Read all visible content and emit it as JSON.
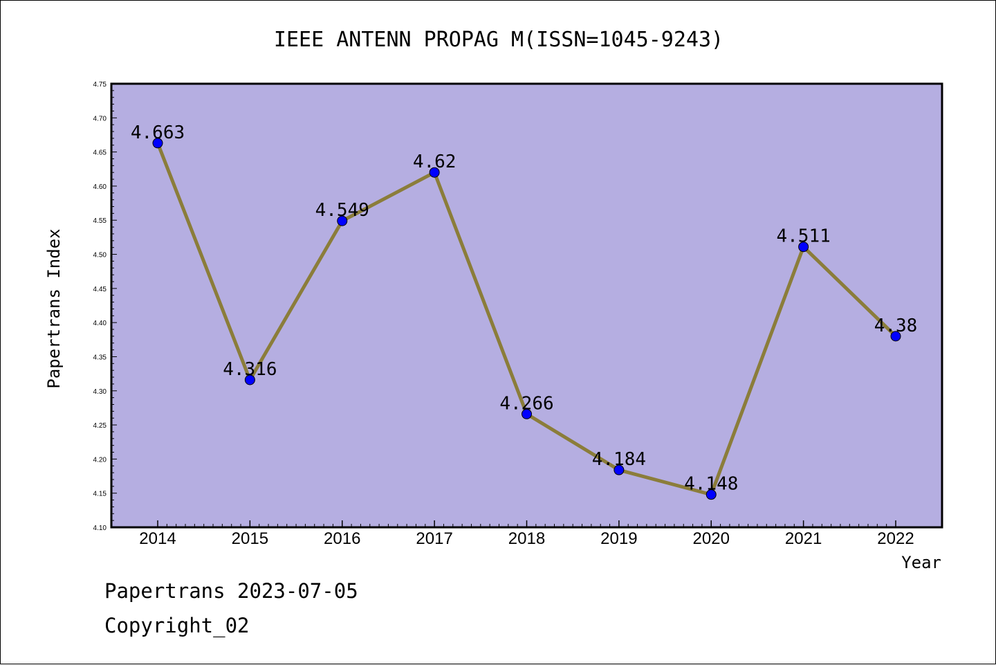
{
  "chart_data": {
    "type": "line",
    "title": "IEEE ANTENN PROPAG M(ISSN=1045-9243)",
    "xlabel": "Year",
    "ylabel": "Papertrans Index",
    "categories": [
      "2014",
      "2015",
      "2016",
      "2017",
      "2018",
      "2019",
      "2020",
      "2021",
      "2022"
    ],
    "series": [
      {
        "values": [
          4.663,
          4.316,
          4.549,
          4.62,
          4.266,
          4.184,
          4.148,
          4.511,
          4.38
        ],
        "labels": [
          "4.663",
          "4.316",
          "4.549",
          "4.62",
          "4.266",
          "4.184",
          "4.148",
          "4.511",
          "4.38"
        ]
      }
    ],
    "ylim": [
      4.1,
      4.75
    ],
    "yticks": [
      "4.10",
      "4.15",
      "4.20",
      "4.25",
      "4.30",
      "4.35",
      "4.40",
      "4.45",
      "4.50",
      "4.55",
      "4.60",
      "4.65",
      "4.70",
      "4.75"
    ],
    "grid": false,
    "colors": {
      "plot_background": "#b5aee1",
      "line": "#8b7d3a",
      "marker": "#0000ff"
    }
  },
  "footer": {
    "line1": "Papertrans 2023-07-05",
    "line2": "Copyright_02"
  }
}
